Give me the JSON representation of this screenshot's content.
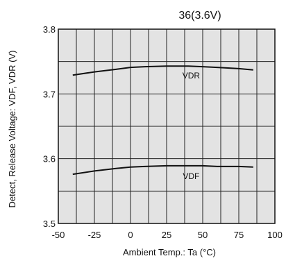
{
  "chart_data": {
    "type": "line",
    "title": "36(3.6V)",
    "xlabel": "Ambient Temp.: Ta (°C)",
    "ylabel": "Detect, Release Voltage: VDF, VDR (V)",
    "xlim": [
      -50,
      100
    ],
    "ylim": [
      3.5,
      3.8
    ],
    "xticks": [
      "-50",
      "-25",
      "0",
      "25",
      "50",
      "75",
      "100"
    ],
    "yticks": [
      "3.5",
      "3.6",
      "3.7",
      "3.8"
    ],
    "grid": true,
    "series": [
      {
        "name": "VDR",
        "x": [
          -40,
          -25,
          -10,
          0,
          10,
          25,
          40,
          50,
          60,
          75,
          85
        ],
        "y": [
          3.729,
          3.734,
          3.738,
          3.741,
          3.742,
          3.743,
          3.743,
          3.742,
          3.741,
          3.739,
          3.737
        ]
      },
      {
        "name": "VDF",
        "x": [
          -40,
          -25,
          -10,
          0,
          10,
          25,
          40,
          50,
          60,
          75,
          85
        ],
        "y": [
          3.576,
          3.581,
          3.585,
          3.587,
          3.588,
          3.589,
          3.589,
          3.589,
          3.588,
          3.588,
          3.587
        ]
      }
    ]
  }
}
